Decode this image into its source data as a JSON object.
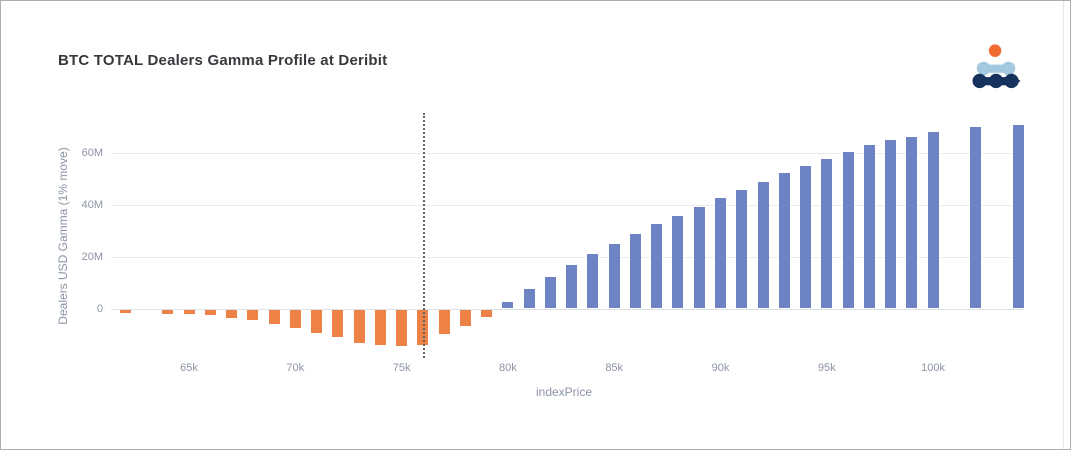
{
  "header": {
    "title": "BTC TOTAL Dealers Gamma Profile at Deribit"
  },
  "logo": {
    "colors": {
      "top_dot": "#f26b30",
      "mid_row": "#a3c9e0",
      "bottom_row": "#17335d"
    }
  },
  "chart_data": {
    "type": "bar",
    "title": "BTC TOTAL Dealers Gamma Profile at Deribit",
    "xlabel": "indexPrice",
    "ylabel": "Dealers USD Gamma (1% move)",
    "x_unit": "USD thousands (k)",
    "y_unit": "USD millions (M)",
    "xlim": [
      61.3,
      104.8
    ],
    "ylim": [
      -18,
      75
    ],
    "grid": true,
    "legend": false,
    "positive_color": "#6d83c4",
    "negative_color": "#ee8145",
    "current_price_line": {
      "x": 76.05,
      "style": "dotted",
      "color": "#5f6468"
    },
    "yticks": [
      {
        "value": 0,
        "label": "0"
      },
      {
        "value": 20,
        "label": "20M"
      },
      {
        "value": 40,
        "label": "40M"
      },
      {
        "value": 60,
        "label": "60M"
      }
    ],
    "xticks": [
      {
        "value": 65,
        "label": "65k"
      },
      {
        "value": 70,
        "label": "70k"
      },
      {
        "value": 75,
        "label": "75k"
      },
      {
        "value": 80,
        "label": "80k"
      },
      {
        "value": 85,
        "label": "85k"
      },
      {
        "value": 90,
        "label": "90k"
      },
      {
        "value": 95,
        "label": "95k"
      },
      {
        "value": 100,
        "label": "100k"
      }
    ],
    "series": [
      {
        "name": "Dealers USD Gamma",
        "points": [
          {
            "strike": 62,
            "value": -1.5
          },
          {
            "strike": 64,
            "value": -1.7
          },
          {
            "strike": 65,
            "value": -1.9
          },
          {
            "strike": 66,
            "value": -2.3
          },
          {
            "strike": 67,
            "value": -3.2
          },
          {
            "strike": 68,
            "value": -4.1
          },
          {
            "strike": 69,
            "value": -5.4
          },
          {
            "strike": 70,
            "value": -7.0
          },
          {
            "strike": 71,
            "value": -9.2
          },
          {
            "strike": 72,
            "value": -10.5
          },
          {
            "strike": 73,
            "value": -12.7
          },
          {
            "strike": 74,
            "value": -13.7
          },
          {
            "strike": 75,
            "value": -14.1
          },
          {
            "strike": 76,
            "value": -13.5
          },
          {
            "strike": 77,
            "value": -9.6
          },
          {
            "strike": 78,
            "value": -6.5
          },
          {
            "strike": 79,
            "value": -3.0
          },
          {
            "strike": 80,
            "value": 2.6
          },
          {
            "strike": 81,
            "value": 7.6
          },
          {
            "strike": 82,
            "value": 12.2
          },
          {
            "strike": 83,
            "value": 16.8
          },
          {
            "strike": 84,
            "value": 21.0
          },
          {
            "strike": 85,
            "value": 24.9
          },
          {
            "strike": 86,
            "value": 28.7
          },
          {
            "strike": 87,
            "value": 32.6
          },
          {
            "strike": 88,
            "value": 35.7
          },
          {
            "strike": 89,
            "value": 39.1
          },
          {
            "strike": 90,
            "value": 42.6
          },
          {
            "strike": 91,
            "value": 45.7
          },
          {
            "strike": 92,
            "value": 48.7
          },
          {
            "strike": 93,
            "value": 52.2
          },
          {
            "strike": 94,
            "value": 54.9
          },
          {
            "strike": 95,
            "value": 57.6
          },
          {
            "strike": 96,
            "value": 60.3
          },
          {
            "strike": 97,
            "value": 63.0
          },
          {
            "strike": 98,
            "value": 64.9
          },
          {
            "strike": 99,
            "value": 66.0
          },
          {
            "strike": 100,
            "value": 68.0
          },
          {
            "strike": 102,
            "value": 69.9
          },
          {
            "strike": 104,
            "value": 70.7
          }
        ]
      }
    ]
  }
}
